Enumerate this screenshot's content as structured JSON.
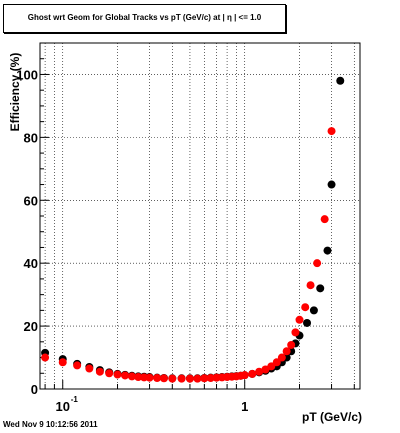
{
  "chart_data": {
    "type": "scatter",
    "title": "Ghost wrt Geom for Global Tracks vs pT (GeV/c) at |  η | <= 1.0",
    "xlabel": "pT (GeV/c)",
    "ylabel": "Efficiency (%)",
    "x_scale": "log",
    "xlim": [
      0.075,
      4.3
    ],
    "ylim": [
      0,
      110
    ],
    "grid": true,
    "x_tick_labels": [
      {
        "value": 0.1,
        "base": "10",
        "exp": "-1"
      },
      {
        "value": 1,
        "text": "1"
      }
    ],
    "y_tick_labels": [
      "0",
      "20",
      "40",
      "60",
      "80",
      "100"
    ],
    "series": [
      {
        "color": "#000000",
        "points": [
          [
            0.08,
            11.5
          ],
          [
            0.1,
            9.5
          ],
          [
            0.12,
            8.0
          ],
          [
            0.14,
            7.0
          ],
          [
            0.16,
            6.0
          ],
          [
            0.18,
            5.3
          ],
          [
            0.2,
            4.8
          ],
          [
            0.22,
            4.5
          ],
          [
            0.24,
            4.2
          ],
          [
            0.26,
            4.0
          ],
          [
            0.28,
            3.9
          ],
          [
            0.3,
            3.8
          ],
          [
            0.33,
            3.6
          ],
          [
            0.36,
            3.5
          ],
          [
            0.4,
            3.4
          ],
          [
            0.45,
            3.4
          ],
          [
            0.5,
            3.4
          ],
          [
            0.55,
            3.4
          ],
          [
            0.6,
            3.5
          ],
          [
            0.65,
            3.6
          ],
          [
            0.7,
            3.7
          ],
          [
            0.75,
            3.8
          ],
          [
            0.8,
            3.9
          ],
          [
            0.85,
            4.0
          ],
          [
            0.9,
            4.1
          ],
          [
            0.95,
            4.2
          ],
          [
            1.0,
            4.4
          ],
          [
            1.1,
            4.8
          ],
          [
            1.2,
            5.3
          ],
          [
            1.3,
            5.8
          ],
          [
            1.4,
            6.5
          ],
          [
            1.5,
            7.2
          ],
          [
            1.6,
            8.5
          ],
          [
            1.7,
            10.0
          ],
          [
            1.8,
            12.0
          ],
          [
            1.9,
            14.5
          ],
          [
            2.0,
            17.0
          ],
          [
            2.2,
            21.0
          ],
          [
            2.4,
            25.0
          ],
          [
            2.6,
            32.0
          ],
          [
            2.85,
            44.0
          ],
          [
            3.0,
            65.0
          ],
          [
            3.35,
            98.0
          ]
        ]
      },
      {
        "color": "#ff0000",
        "points": [
          [
            0.08,
            10.0
          ],
          [
            0.1,
            8.5
          ],
          [
            0.12,
            7.5
          ],
          [
            0.14,
            6.5
          ],
          [
            0.16,
            5.5
          ],
          [
            0.18,
            5.0
          ],
          [
            0.2,
            4.6
          ],
          [
            0.22,
            4.3
          ],
          [
            0.24,
            4.0
          ],
          [
            0.26,
            3.8
          ],
          [
            0.28,
            3.7
          ],
          [
            0.3,
            3.6
          ],
          [
            0.33,
            3.5
          ],
          [
            0.36,
            3.4
          ],
          [
            0.4,
            3.3
          ],
          [
            0.45,
            3.3
          ],
          [
            0.5,
            3.3
          ],
          [
            0.55,
            3.3
          ],
          [
            0.6,
            3.4
          ],
          [
            0.65,
            3.5
          ],
          [
            0.7,
            3.6
          ],
          [
            0.75,
            3.7
          ],
          [
            0.8,
            3.8
          ],
          [
            0.85,
            3.9
          ],
          [
            0.9,
            4.0
          ],
          [
            0.95,
            4.2
          ],
          [
            1.0,
            4.4
          ],
          [
            1.1,
            4.8
          ],
          [
            1.2,
            5.5
          ],
          [
            1.3,
            6.2
          ],
          [
            1.4,
            7.2
          ],
          [
            1.5,
            8.5
          ],
          [
            1.6,
            10.0
          ],
          [
            1.7,
            12.0
          ],
          [
            1.8,
            14.0
          ],
          [
            1.9,
            18.0
          ],
          [
            2.0,
            22.0
          ],
          [
            2.15,
            26.0
          ],
          [
            2.3,
            33.0
          ],
          [
            2.5,
            40.0
          ],
          [
            2.75,
            54.0
          ],
          [
            3.0,
            82.0
          ]
        ]
      }
    ]
  },
  "footer": {
    "timestamp": "Wed Nov  9 10:12:56 2011"
  }
}
